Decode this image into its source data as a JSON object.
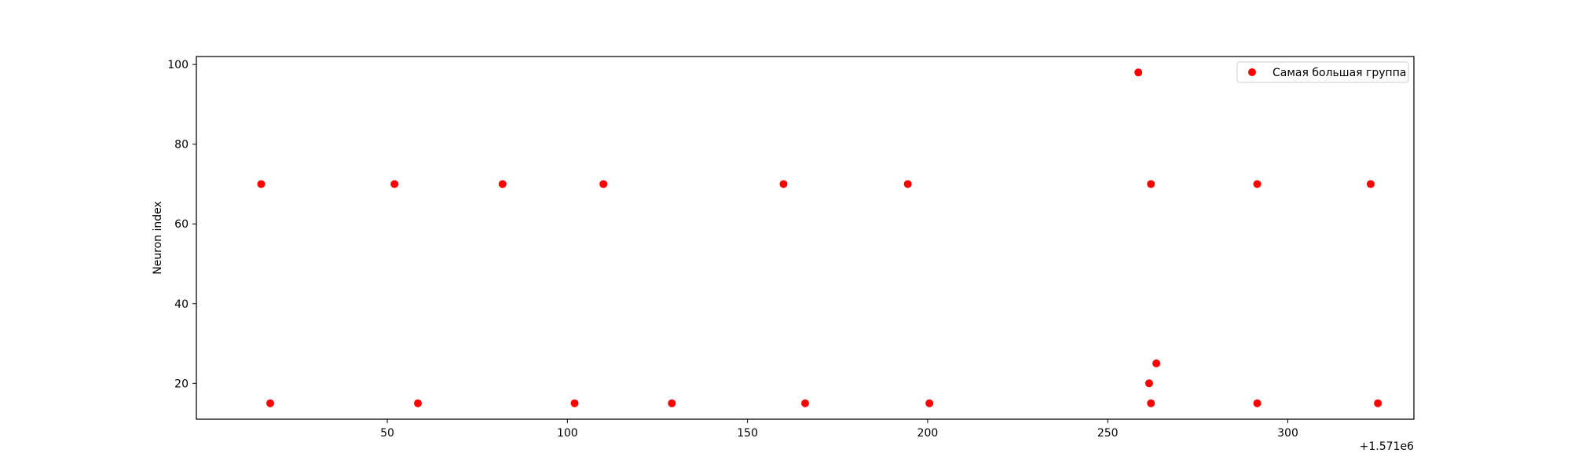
{
  "chart_data": {
    "type": "scatter",
    "title": "",
    "xlabel": "",
    "ylabel": "Neuron index",
    "x_offset_label": "+1.571e6",
    "xlim": [
      -3,
      335
    ],
    "ylim": [
      11,
      102
    ],
    "x_ticks": [
      50,
      100,
      150,
      200,
      250,
      300
    ],
    "y_ticks": [
      20,
      40,
      60,
      80,
      100
    ],
    "grid": false,
    "legend_position": "top-right",
    "color": "#ff0000",
    "series": [
      {
        "name": "Самая большая группа",
        "points": [
          [
            15,
            70
          ],
          [
            17.5,
            15
          ],
          [
            52,
            70
          ],
          [
            58.5,
            15
          ],
          [
            82,
            70
          ],
          [
            102,
            15
          ],
          [
            110,
            70
          ],
          [
            129,
            15
          ],
          [
            160,
            70
          ],
          [
            166,
            15
          ],
          [
            194.5,
            70
          ],
          [
            200.5,
            15
          ],
          [
            258.5,
            98
          ],
          [
            261.5,
            20
          ],
          [
            262,
            70
          ],
          [
            262,
            15
          ],
          [
            263.5,
            25
          ],
          [
            291.5,
            70
          ],
          [
            291.5,
            15
          ],
          [
            323,
            70
          ],
          [
            325,
            15
          ]
        ]
      }
    ]
  }
}
